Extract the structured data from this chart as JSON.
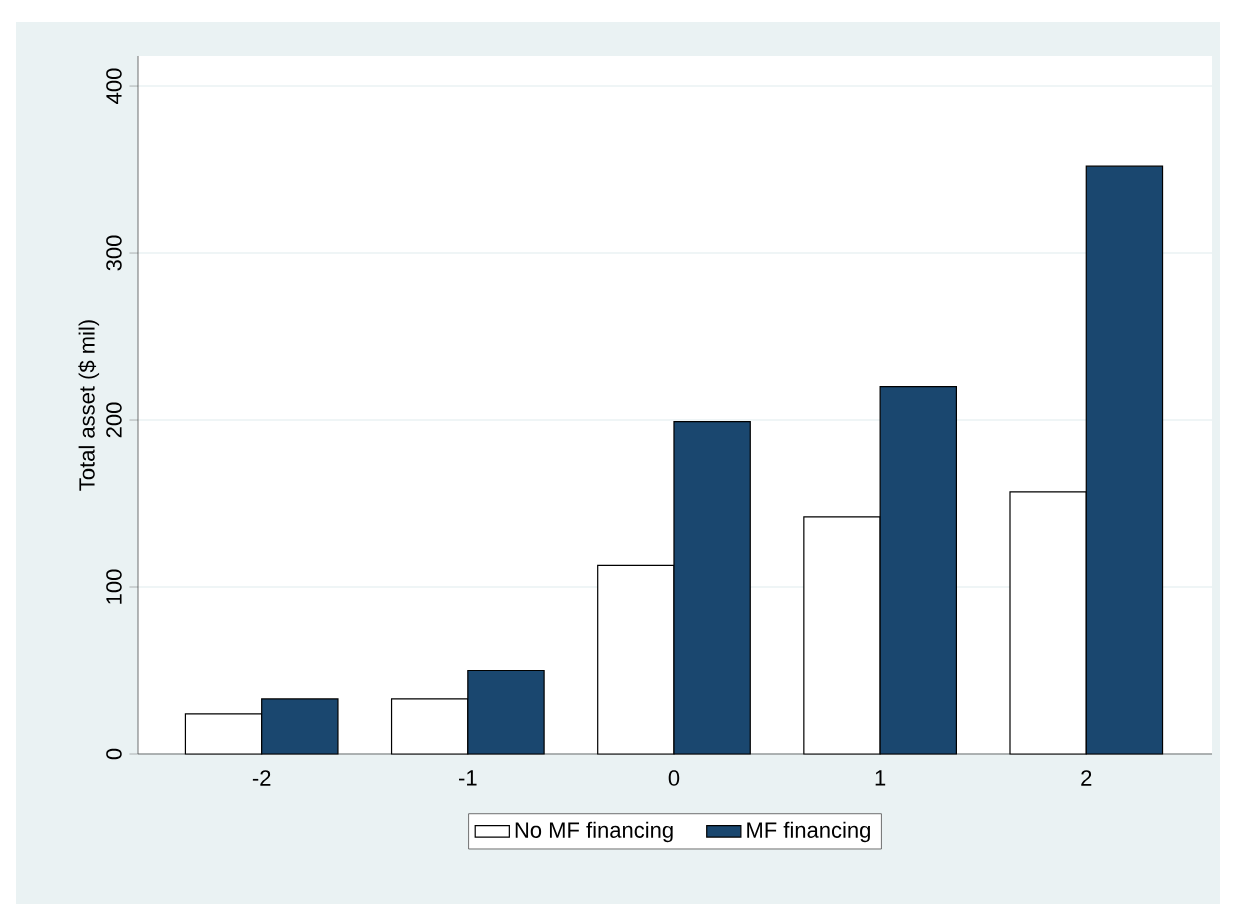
{
  "chart_data": {
    "type": "bar",
    "ylabel": "Total asset ($ mil)",
    "categories": [
      "-2",
      "-1",
      "0",
      "1",
      "2"
    ],
    "series": [
      {
        "name": "No MF financing",
        "color": "#ffffff",
        "values": [
          24,
          33,
          113,
          142,
          157
        ]
      },
      {
        "name": "MF financing",
        "color": "#1a476f",
        "values": [
          33,
          50,
          199,
          220,
          352
        ]
      }
    ],
    "ylim": [
      0,
      418
    ],
    "yticks": [
      0,
      100,
      200,
      300,
      400
    ],
    "grid": "y",
    "legend": "bottom"
  }
}
